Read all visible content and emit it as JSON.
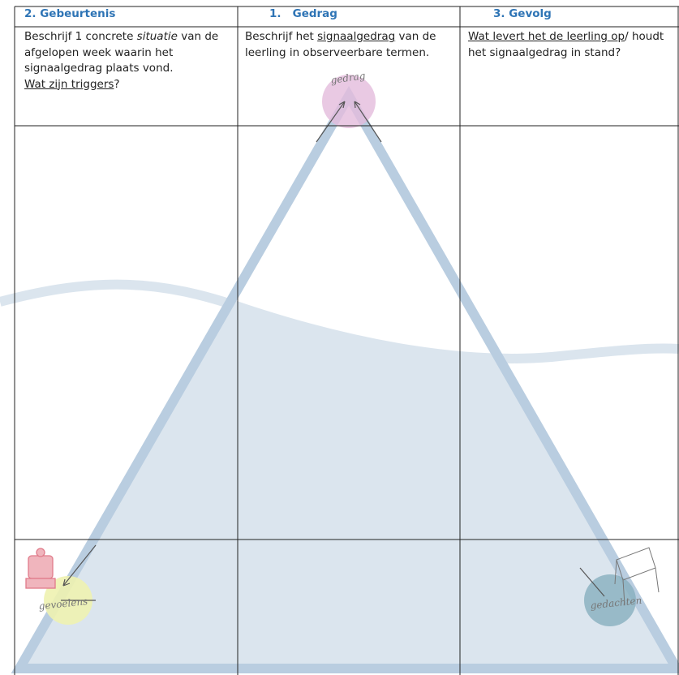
{
  "table": {
    "headers": [
      "2. Gebeurtenis",
      "1.   Gedrag",
      "3. Gevolg"
    ],
    "cells": [
      {
        "paragraphs": [
          {
            "runs": [
              {
                "text": "Beschrijf 1 concrete "
              },
              {
                "text": "situatie",
                "style": "italic"
              },
              {
                "text": " van de afgelopen week waarin het signaalgedrag plaats vond."
              }
            ]
          },
          {
            "runs": [
              {
                "text": "Wat zijn triggers",
                "style": "underline"
              },
              {
                "text": "?"
              }
            ]
          }
        ]
      },
      {
        "paragraphs": [
          {
            "runs": [
              {
                "text": "Beschrijf het "
              },
              {
                "text": "signaalgedrag",
                "style": "underline"
              },
              {
                "text": " van de leerling in observeerbare termen."
              }
            ]
          }
        ]
      },
      {
        "paragraphs": [
          {
            "runs": [
              {
                "text": "Wat levert het de leerling op",
                "style": "underline"
              },
              {
                "text": "/ houdt het signaalgedrag in stand?"
              }
            ]
          }
        ]
      }
    ]
  },
  "illustration": {
    "labels": [
      "gedrag",
      "gevoelens",
      "gedachten"
    ]
  }
}
